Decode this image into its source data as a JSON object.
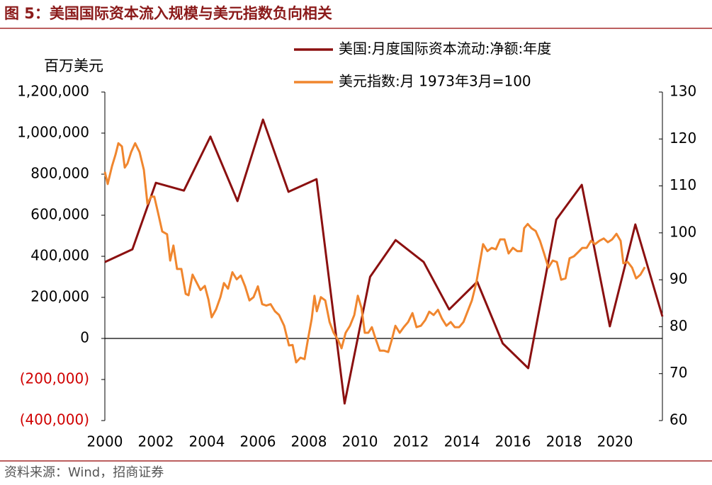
{
  "chart_data": {
    "type": "line",
    "title": "图 5：美国国际资本流入规模与美元指数负向相关",
    "y_label": "百万美元",
    "source": "资料来源：Wind，招商证券",
    "xlim": [
      2000,
      2021.86
    ],
    "xticks": [
      2000,
      2002,
      2004,
      2006,
      2008,
      2010,
      2012,
      2014,
      2016,
      2018,
      2020
    ],
    "ylim": [
      -400000,
      1200000
    ],
    "yticks": [
      {
        "value": -400000,
        "label": "(400,000)"
      },
      {
        "value": -200000,
        "label": "(200,000)"
      },
      0,
      {
        "value": 200000,
        "label": "200,000"
      },
      {
        "value": 400000,
        "label": "400,000"
      },
      {
        "value": 600000,
        "label": "600,000"
      },
      {
        "value": 800000,
        "label": "800,000"
      },
      {
        "value": 1000000,
        "label": "1,000,000"
      },
      {
        "value": 1200000,
        "label": "1,200,000"
      }
    ],
    "y2lim": [
      60,
      130
    ],
    "y2ticks": [
      60,
      70,
      80,
      90,
      100,
      110,
      120,
      130
    ],
    "legend": "top",
    "series": [
      {
        "name": "美国:月度国际资本流动:净额:年度",
        "color": "#8b1010",
        "x": [
          2000.0,
          2001.08,
          2002.0,
          2003.1,
          2004.14,
          2005.2,
          2006.2,
          2007.2,
          2008.3,
          2009.4,
          2010.4,
          2011.4,
          2012.5,
          2013.5,
          2014.6,
          2015.6,
          2016.6,
          2017.7,
          2018.7,
          2019.8,
          2020.8,
          2021.86
        ],
        "values": [
          372000,
          434000,
          758000,
          720000,
          983000,
          669000,
          1066000,
          714000,
          776000,
          -317000,
          300000,
          479000,
          372000,
          141000,
          276000,
          -24000,
          -145000,
          579000,
          748000,
          59000,
          555000,
          107000
        ]
      },
      {
        "name": "美元指数:月 1973年3月=100",
        "color": "#f0862e",
        "axis": "y2",
        "x": [
          2000.0,
          2000.11,
          2000.28,
          2000.42,
          2000.53,
          2000.67,
          2000.78,
          2000.89,
          2001.03,
          2001.19,
          2001.36,
          2001.53,
          2001.67,
          2001.81,
          2001.94,
          2002.08,
          2002.25,
          2002.44,
          2002.56,
          2002.69,
          2002.83,
          2003.0,
          2003.17,
          2003.28,
          2003.44,
          2003.58,
          2003.75,
          2003.92,
          2004.06,
          2004.19,
          2004.36,
          2004.53,
          2004.67,
          2004.83,
          2005.0,
          2005.17,
          2005.33,
          2005.5,
          2005.67,
          2005.83,
          2006.0,
          2006.17,
          2006.33,
          2006.5,
          2006.67,
          2006.83,
          2007.03,
          2007.22,
          2007.36,
          2007.5,
          2007.67,
          2007.83,
          2007.97,
          2008.11,
          2008.22,
          2008.31,
          2008.47,
          2008.64,
          2008.81,
          2008.97,
          2009.14,
          2009.28,
          2009.44,
          2009.61,
          2009.78,
          2009.92,
          2010.06,
          2010.19,
          2010.33,
          2010.47,
          2010.61,
          2010.78,
          2010.94,
          2011.11,
          2011.25,
          2011.39,
          2011.56,
          2011.72,
          2011.89,
          2012.06,
          2012.22,
          2012.39,
          2012.56,
          2012.72,
          2012.89,
          2013.06,
          2013.22,
          2013.39,
          2013.56,
          2013.72,
          2013.89,
          2014.06,
          2014.22,
          2014.39,
          2014.56,
          2014.69,
          2014.83,
          2015.0,
          2015.17,
          2015.33,
          2015.5,
          2015.67,
          2015.83,
          2016.0,
          2016.17,
          2016.33,
          2016.44,
          2016.58,
          2016.72,
          2016.89,
          2017.06,
          2017.22,
          2017.39,
          2017.56,
          2017.72,
          2017.89,
          2018.06,
          2018.22,
          2018.39,
          2018.56,
          2018.72,
          2018.89,
          2019.06,
          2019.22,
          2019.39,
          2019.56,
          2019.72,
          2019.89,
          2020.06,
          2020.22,
          2020.33,
          2020.5,
          2020.67,
          2020.83,
          2021.0,
          2021.17
        ],
        "values": [
          113.0,
          110.4,
          114.2,
          116.7,
          119.1,
          118.4,
          113.9,
          114.8,
          117.2,
          119.1,
          117.2,
          113.4,
          106.2,
          107.7,
          107.7,
          104.4,
          100.3,
          99.7,
          94.1,
          97.3,
          92.3,
          92.3,
          87.0,
          86.7,
          91.1,
          89.6,
          87.8,
          88.7,
          85.8,
          82.0,
          83.7,
          86.3,
          89.3,
          88.1,
          91.6,
          90.1,
          90.9,
          88.6,
          85.6,
          86.3,
          88.6,
          84.8,
          84.5,
          84.8,
          83.3,
          82.5,
          80.2,
          76.0,
          76.1,
          72.4,
          73.4,
          73.1,
          77.5,
          81.7,
          86.6,
          83.3,
          86.3,
          85.6,
          81.0,
          78.7,
          77.2,
          75.4,
          78.7,
          80.2,
          82.5,
          86.6,
          84.0,
          78.7,
          78.7,
          79.9,
          77.5,
          74.9,
          74.9,
          74.6,
          77.2,
          80.2,
          78.7,
          79.9,
          81.0,
          82.9,
          79.9,
          80.2,
          81.4,
          83.2,
          82.5,
          83.6,
          81.7,
          80.2,
          81.0,
          79.9,
          79.9,
          81.0,
          83.2,
          85.6,
          89.3,
          93.3,
          97.6,
          96.1,
          96.8,
          96.5,
          98.6,
          98.6,
          95.6,
          96.8,
          96.1,
          96.1,
          101.0,
          101.9,
          101.0,
          100.4,
          98.3,
          95.6,
          92.6,
          94.1,
          93.8,
          90.0,
          90.3,
          94.6,
          95.0,
          95.9,
          96.8,
          96.8,
          98.3,
          97.6,
          98.3,
          98.8,
          98.0,
          98.6,
          99.8,
          98.3,
          93.5,
          93.8,
          92.6,
          90.3,
          91.1,
          92.7
        ]
      }
    ]
  }
}
